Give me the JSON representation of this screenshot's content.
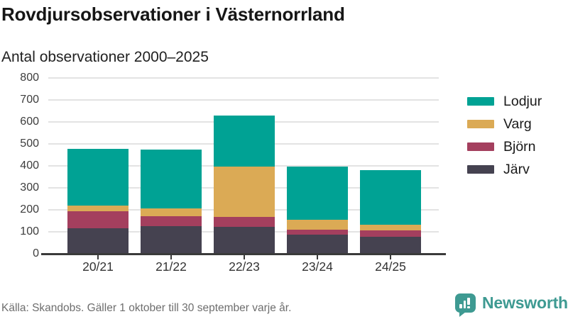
{
  "header": {
    "title": "Rovdjursobservationer i Västernorrland",
    "subtitle": "Antal observationer 2000–2025"
  },
  "chart_data": {
    "type": "bar",
    "stacked": true,
    "categories": [
      "20/21",
      "21/22",
      "22/23",
      "23/24",
      "24/25"
    ],
    "series": [
      {
        "name": "Lodjur",
        "color": "#00A294",
        "values": [
          259,
          268,
          234,
          241,
          250
        ]
      },
      {
        "name": "Varg",
        "color": "#DBAA55",
        "values": [
          27,
          36,
          227,
          45,
          25
        ]
      },
      {
        "name": "Björn",
        "color": "#A43F5E",
        "values": [
          77,
          45,
          47,
          25,
          30
        ]
      },
      {
        "name": "Järv",
        "color": "#454250",
        "values": [
          115,
          126,
          122,
          86,
          77
        ]
      }
    ],
    "totals": [
      478,
      475,
      630,
      397,
      382
    ],
    "title": "Rovdjursobservationer i Västernorrland",
    "subtitle": "Antal observationer 2000–2025",
    "xlabel": "",
    "ylabel": "",
    "ylim": [
      0,
      800
    ],
    "ytick_step": 100,
    "yticks": [
      0,
      100,
      200,
      300,
      400,
      500,
      600,
      700,
      800
    ],
    "grid": true,
    "legend_position": "right"
  },
  "footer": {
    "source": "Källa: Skandobs. Gäller 1 oktober till 30 september varje år.",
    "brand": "Newsworthy"
  },
  "colors": {
    "lodjur": "#00A294",
    "varg": "#DBAA55",
    "bjorn": "#A43F5E",
    "jarv": "#454250",
    "gridline": "#E3E3E3",
    "axis": "#3A3A3A",
    "brand_teal": "#3E9A92",
    "footer_gray": "#6E6E6E"
  },
  "icons": {
    "logo": "newsworthy-speech-bubble-bar-chart-icon"
  }
}
